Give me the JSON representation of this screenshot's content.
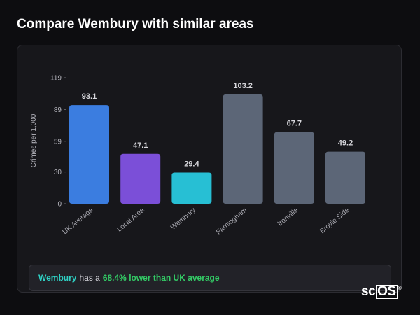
{
  "page": {
    "title": "Compare Wembury with similar areas"
  },
  "summary": {
    "area_name": "Wembury",
    "middle_text": "has a",
    "delta_text": "68.4% lower than UK average"
  },
  "logo": {
    "text_prefix": "sc",
    "text_boxed": "OS",
    "mark": "®"
  },
  "colors": {
    "uk_average": "#3b7de0",
    "local_area": "#7b4fd8",
    "focus_area": "#27bfd4",
    "similar_area": "#5c6677",
    "accent_green": "#33cc66",
    "accent_teal": "#2fd1c4"
  },
  "chart_data": {
    "type": "bar",
    "title": "",
    "xlabel": "",
    "ylabel": "Crimes per 1,000",
    "ylim": [
      0,
      119
    ],
    "yticks": [
      0,
      30,
      59,
      89,
      119
    ],
    "grid": false,
    "categories": [
      "UK Average",
      "Local Area",
      "Wembury",
      "Farningham",
      "Ironville",
      "Broyle Side"
    ],
    "values": [
      93.1,
      47.1,
      29.4,
      103.2,
      67.7,
      49.2
    ],
    "value_labels": [
      "93.1",
      "47.1",
      "29.4",
      "103.2",
      "67.7",
      "49.2"
    ],
    "bar_colors": [
      "#3b7de0",
      "#7b4fd8",
      "#27bfd4",
      "#5c6677",
      "#5c6677",
      "#5c6677"
    ]
  }
}
